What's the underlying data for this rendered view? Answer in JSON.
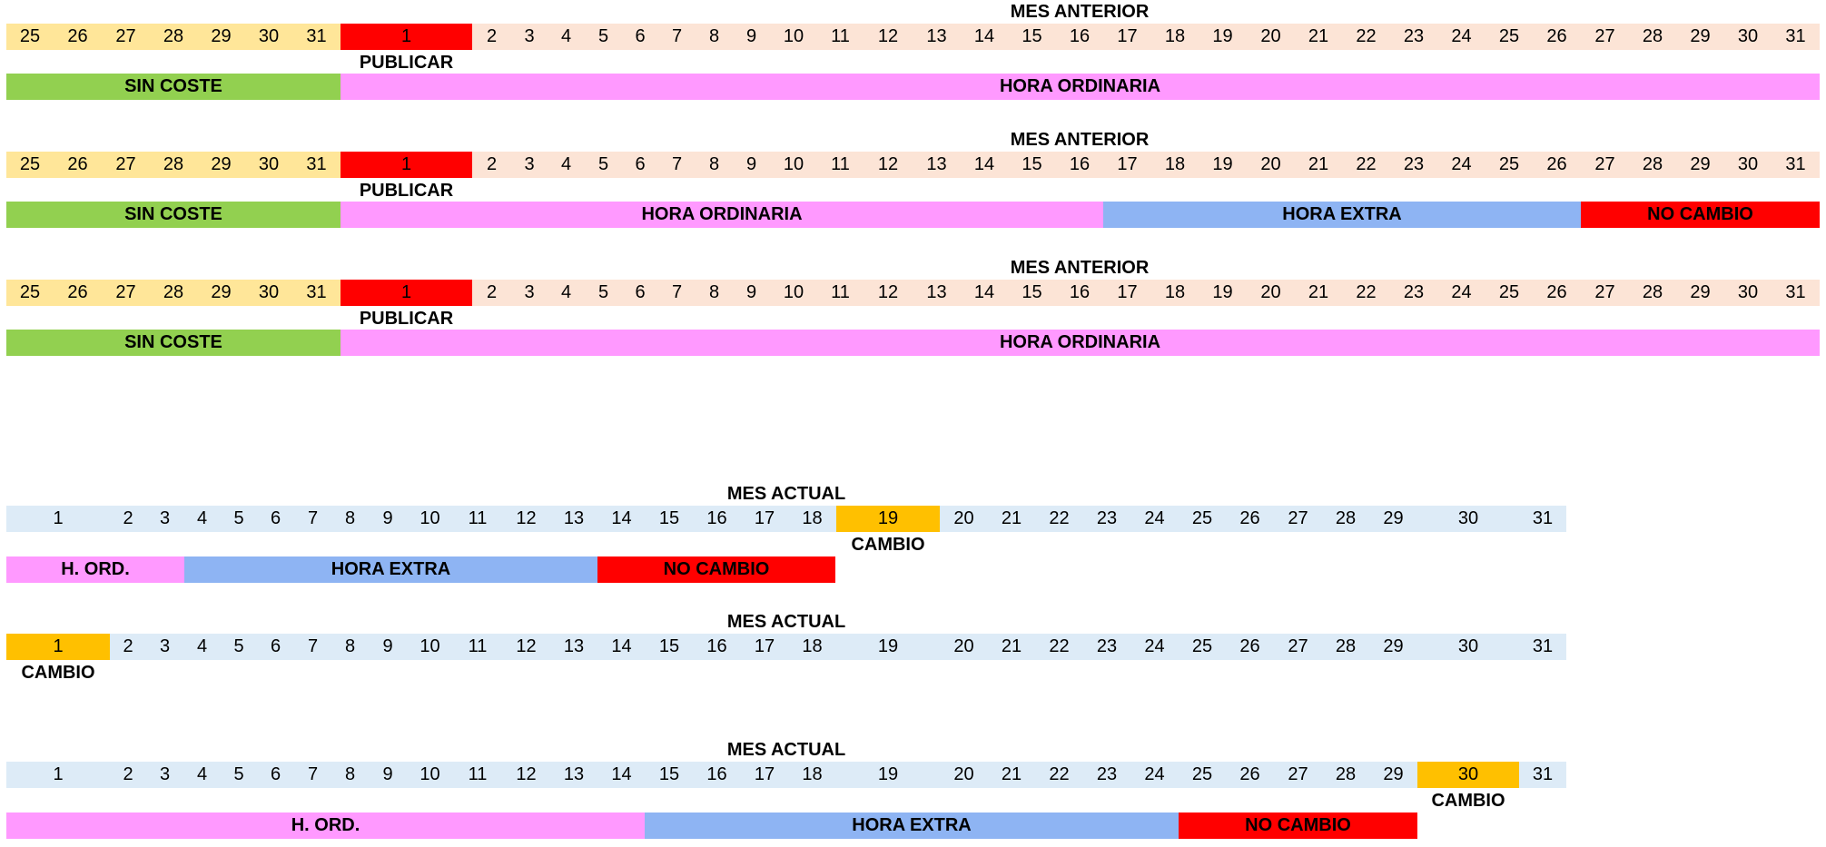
{
  "colors": {
    "prev_days": "#FFE699",
    "days_prev_month": "#FCE4D6",
    "publish": "#FF0000",
    "sin_coste": "#92D050",
    "hora_ordinaria": "#FF99FF",
    "hora_extra": "#8EB4F3",
    "no_cambio": "#FF0000",
    "days_current_month": "#DDEBF7",
    "cambio": "#FFC000"
  },
  "prev_month_rows": [
    {
      "title": "MES ANTERIOR",
      "lead_days": [
        "25",
        "26",
        "27",
        "28",
        "29",
        "30",
        "31"
      ],
      "highlight_day": "1",
      "days": [
        "2",
        "3",
        "4",
        "5",
        "6",
        "7",
        "8",
        "9",
        "10",
        "11",
        "12",
        "13",
        "14",
        "15",
        "16",
        "17",
        "18",
        "19",
        "20",
        "21",
        "22",
        "23",
        "24",
        "25",
        "26",
        "27",
        "28",
        "29",
        "30",
        "31"
      ],
      "marker": "PUBLICAR",
      "bars": [
        "SIN COSTE",
        "HORA ORDINARIA"
      ]
    },
    {
      "title": "MES ANTERIOR",
      "lead_days": [
        "25",
        "26",
        "27",
        "28",
        "29",
        "30",
        "31"
      ],
      "highlight_day": "1",
      "days": [
        "2",
        "3",
        "4",
        "5",
        "6",
        "7",
        "8",
        "9",
        "10",
        "11",
        "12",
        "13",
        "14",
        "15",
        "16",
        "17",
        "18",
        "19",
        "20",
        "21",
        "22",
        "23",
        "24",
        "25",
        "26",
        "27",
        "28",
        "29",
        "30",
        "31"
      ],
      "marker": "PUBLICAR",
      "bars": [
        "SIN COSTE",
        "HORA ORDINARIA",
        "HORA EXTRA",
        "NO CAMBIO"
      ]
    },
    {
      "title": "MES ANTERIOR",
      "lead_days": [
        "25",
        "26",
        "27",
        "28",
        "29",
        "30",
        "31"
      ],
      "highlight_day": "1",
      "days": [
        "2",
        "3",
        "4",
        "5",
        "6",
        "7",
        "8",
        "9",
        "10",
        "11",
        "12",
        "13",
        "14",
        "15",
        "16",
        "17",
        "18",
        "19",
        "20",
        "21",
        "22",
        "23",
        "24",
        "25",
        "26",
        "27",
        "28",
        "29",
        "30",
        "31"
      ],
      "marker": "PUBLICAR",
      "bars": [
        "SIN COSTE",
        "HORA ORDINARIA"
      ]
    }
  ],
  "current_month_rows": [
    {
      "title": "MES ACTUAL",
      "days": [
        "1",
        "2",
        "3",
        "4",
        "5",
        "6",
        "7",
        "8",
        "9",
        "10",
        "11",
        "12",
        "13",
        "14",
        "15",
        "16",
        "17",
        "18",
        "19",
        "20",
        "21",
        "22",
        "23",
        "24",
        "25",
        "26",
        "27",
        "28",
        "29",
        "30",
        "31"
      ],
      "highlight_day": "19",
      "marker": "CAMBIO",
      "bars": [
        "H. ORD.",
        "HORA EXTRA",
        "NO CAMBIO"
      ]
    },
    {
      "title": "MES ACTUAL",
      "days": [
        "1",
        "2",
        "3",
        "4",
        "5",
        "6",
        "7",
        "8",
        "9",
        "10",
        "11",
        "12",
        "13",
        "14",
        "15",
        "16",
        "17",
        "18",
        "19",
        "20",
        "21",
        "22",
        "23",
        "24",
        "25",
        "26",
        "27",
        "28",
        "29",
        "30",
        "31"
      ],
      "highlight_day": "1",
      "marker": "CAMBIO",
      "bars": []
    },
    {
      "title": "MES ACTUAL",
      "days": [
        "1",
        "2",
        "3",
        "4",
        "5",
        "6",
        "7",
        "8",
        "9",
        "10",
        "11",
        "12",
        "13",
        "14",
        "15",
        "16",
        "17",
        "18",
        "19",
        "20",
        "21",
        "22",
        "23",
        "24",
        "25",
        "26",
        "27",
        "28",
        "29",
        "30",
        "31"
      ],
      "highlight_day": "30",
      "marker": "CAMBIO",
      "bars": [
        "H. ORD.",
        "HORA EXTRA",
        "NO CAMBIO"
      ]
    }
  ]
}
